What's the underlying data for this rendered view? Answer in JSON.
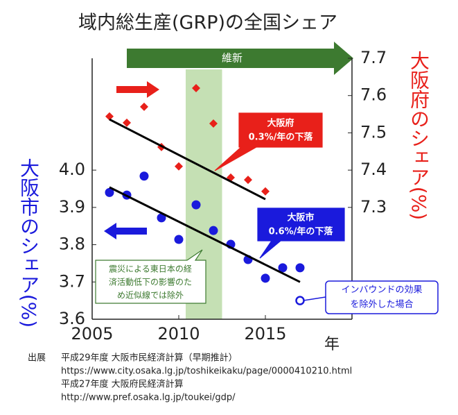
{
  "chart_data": {
    "type": "scatter",
    "title": "域内総生産(GRP)の全国シェア",
    "ylabel": "大阪市のシェア(%)",
    "y2label": "大阪府のシェア(%)",
    "xlabel": "年",
    "xlim": [
      2005,
      2020
    ],
    "xticks": [
      2005,
      2010,
      2015
    ],
    "ylim": [
      3.6,
      4.3
    ],
    "yticks": [
      3.6,
      3.7,
      3.8,
      3.9,
      {
        "value": 4.0,
        "label": "4.0"
      }
    ],
    "y2lim": [
      7.0,
      7.7
    ],
    "y2ticks": [
      7.3,
      7.4,
      7.5,
      7.6,
      7.7
    ],
    "shade": [
      2010.4,
      2012.5
    ],
    "period_label": "維新",
    "series": [
      {
        "marker": "circle",
        "color": "#1a1adc",
        "axis": "y",
        "x": [
          2006,
          2007,
          2008,
          2009,
          2010,
          2011,
          2012,
          2013,
          2014,
          2015,
          2016,
          2017
        ],
        "values": [
          3.94,
          3.933,
          3.984,
          3.872,
          3.814,
          3.907,
          3.838,
          3.801,
          3.76,
          3.71,
          3.738,
          3.738
        ]
      },
      {
        "marker": "hollow-circle",
        "color": "#1a1adc",
        "axis": "y",
        "x": [
          2017
        ],
        "values": [
          3.65
        ]
      },
      {
        "marker": "diamond",
        "color": "#e8201a",
        "axis": "y2",
        "x": [
          2006,
          2007,
          2008,
          2009,
          2010,
          2011,
          2012,
          2013,
          2014,
          2015
        ],
        "values": [
          7.544,
          7.527,
          7.57,
          7.462,
          7.41,
          7.62,
          7.525,
          7.38,
          7.374,
          7.343
        ]
      },
      {
        "marker": "line",
        "color": "#000000",
        "axis": "y",
        "x": [
          2006,
          2017
        ],
        "values": [
          3.954,
          3.7
        ]
      },
      {
        "marker": "line",
        "color": "#000000",
        "axis": "y2",
        "x": [
          2006,
          2015
        ],
        "values": [
          7.536,
          7.322
        ]
      }
    ],
    "annotations": {
      "pref": [
        "大阪府",
        "0.3%/年の下落"
      ],
      "city": [
        "大阪市",
        "0.6%/年の下落"
      ],
      "quake": [
        "震災による東日本の経",
        "済活動低下の影響のた",
        "め近似線では除外"
      ],
      "inbound": [
        "インバウンドの効果",
        "を除外した場合"
      ]
    },
    "source": {
      "label": "出展",
      "lines": [
        "平成29年度 大阪市民経済計算（早期推計）",
        "https://www.city.osaka.lg.jp/toshikeikaku/page/0000410210.html",
        "平成27年度 大阪府民経済計算",
        "http://www.pref.osaka.lg.jp/toukei/gdp/"
      ]
    }
  }
}
